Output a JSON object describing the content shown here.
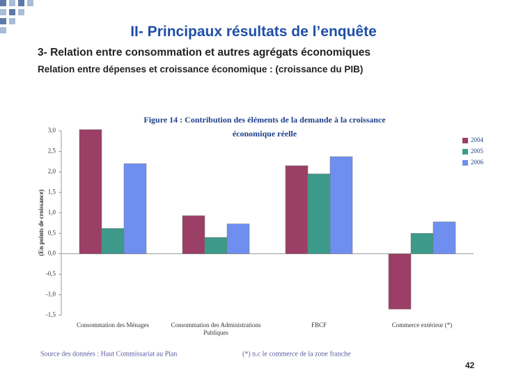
{
  "header": {
    "title": "II- Principaux résultats de l’enquête",
    "subtitle": "3- Relation entre consommation  et autres agrégats économiques",
    "subtitle2": "Relation entre dépenses et croissance économique : (croissance du PIB)"
  },
  "chart_data": {
    "type": "bar",
    "title": "Figure 14 : Contribution des éléments de la demande à la croissance économique réelle",
    "y_label": "(En points de croissance)",
    "categories": [
      "Consommation des Ménages",
      "Consommation des Administrations Publiques",
      "FBCF",
      "Commerce extérieur (*)"
    ],
    "series": [
      {
        "name": "2004",
        "color": "#9b3f66",
        "values": [
          3.03,
          0.93,
          2.15,
          -1.35
        ]
      },
      {
        "name": "2005",
        "color": "#3d9a8a",
        "values": [
          0.62,
          0.4,
          1.95,
          0.5
        ]
      },
      {
        "name": "2006",
        "color": "#6f8ff0",
        "values": [
          2.2,
          0.73,
          2.37,
          0.78
        ]
      }
    ],
    "ylim": [
      -1.5,
      3
    ],
    "yticks": [
      {
        "value": -1.5,
        "label": "-1,5"
      },
      {
        "value": -1,
        "label": "-1,0"
      },
      {
        "value": -0.5,
        "label": "-0,5"
      },
      {
        "value": 0,
        "label": "0,0"
      },
      {
        "value": 0.5,
        "label": "0,5"
      },
      {
        "value": 1,
        "label": "1,0"
      },
      {
        "value": 1.5,
        "label": "1,5"
      },
      {
        "value": 2,
        "label": "2,0"
      },
      {
        "value": 2.5,
        "label": "2,5"
      },
      {
        "value": 3,
        "label": "3,0"
      }
    ],
    "legend": "upper right"
  },
  "footer": {
    "source": "Source des données : Haut Commissariat au Plan",
    "note": "(*) n.c le commerce de la zone franche",
    "page": "42"
  }
}
